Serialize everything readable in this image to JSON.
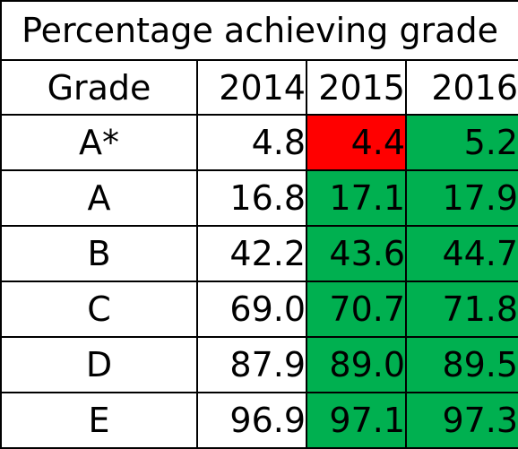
{
  "chart_data": {
    "type": "table",
    "title": "Percentage achieving grade",
    "columns": [
      "Grade",
      "2014",
      "2015",
      "2016"
    ],
    "rows": [
      {
        "grade": "A*",
        "v2014": "4.8",
        "v2015": "4.4",
        "v2016": "5.2",
        "c2015": "red",
        "c2016": "green"
      },
      {
        "grade": "A",
        "v2014": "16.8",
        "v2015": "17.1",
        "v2016": "17.9",
        "c2015": "green",
        "c2016": "green"
      },
      {
        "grade": "B",
        "v2014": "42.2",
        "v2015": "43.6",
        "v2016": "44.7",
        "c2015": "green",
        "c2016": "green"
      },
      {
        "grade": "C",
        "v2014": "69.0",
        "v2015": "70.7",
        "v2016": "71.8",
        "c2015": "green",
        "c2016": "green"
      },
      {
        "grade": "D",
        "v2014": "87.9",
        "v2015": "89.0",
        "v2016": "89.5",
        "c2015": "green",
        "c2016": "green"
      },
      {
        "grade": "E",
        "v2014": "96.9",
        "v2015": "97.1",
        "v2016": "97.3",
        "c2015": "green",
        "c2016": "green"
      }
    ]
  },
  "colors": {
    "increase": "#00b050",
    "decrease": "#ff0000",
    "border": "#000000"
  }
}
